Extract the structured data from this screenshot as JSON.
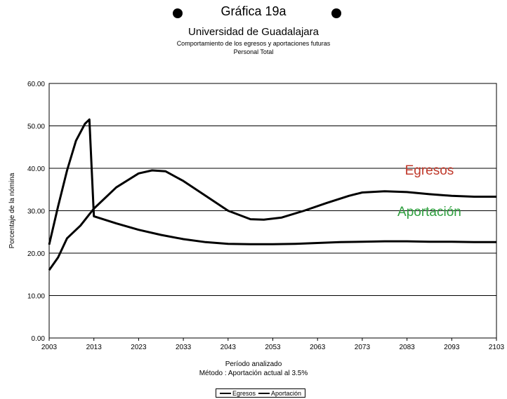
{
  "header": {
    "title": "Gráfica 19a",
    "subtitle": "Universidad de Guadalajara",
    "description": "Comportamiento de los egresos y aportaciones futuras",
    "population": "Personal Total"
  },
  "footer": {
    "xlabel": "Período analizado",
    "method": "Método : Aportación actual al 3.5%"
  },
  "chart_data": {
    "type": "line",
    "ylabel": "Porcentaje de la nómina",
    "ylim": [
      0,
      60
    ],
    "xlim": [
      2003,
      2103
    ],
    "x_ticks": [
      "2003",
      "2013",
      "2023",
      "2033",
      "2043",
      "2053",
      "2063",
      "2073",
      "2083",
      "2093",
      "2103"
    ],
    "y_ticks": [
      "0.00",
      "10.00",
      "20.00",
      "30.00",
      "40.00",
      "50.00",
      "60.00"
    ],
    "grid": true,
    "legend_position": "bottom",
    "series": [
      {
        "name": "Egresos",
        "color": "#000000",
        "label_color": "#c0392b",
        "points": [
          [
            2003,
            22.0
          ],
          [
            2005,
            31.0
          ],
          [
            2007,
            39.5
          ],
          [
            2009,
            46.5
          ],
          [
            2011,
            50.5
          ],
          [
            2012,
            51.5
          ],
          [
            2013,
            28.7
          ],
          [
            2018,
            27.0
          ],
          [
            2023,
            25.5
          ],
          [
            2028,
            24.3
          ],
          [
            2033,
            23.3
          ],
          [
            2038,
            22.6
          ],
          [
            2043,
            22.2
          ],
          [
            2048,
            22.1
          ],
          [
            2053,
            22.1
          ],
          [
            2058,
            22.2
          ],
          [
            2063,
            22.4
          ],
          [
            2068,
            22.6
          ],
          [
            2073,
            22.7
          ],
          [
            2078,
            22.8
          ],
          [
            2083,
            22.8
          ],
          [
            2088,
            22.7
          ],
          [
            2093,
            22.7
          ],
          [
            2098,
            22.6
          ],
          [
            2103,
            22.6
          ]
        ]
      },
      {
        "name": "Aportación",
        "color": "#000000",
        "label_color": "#2e9e3e",
        "points": [
          [
            2003,
            16.0
          ],
          [
            2005,
            19.0
          ],
          [
            2007,
            23.5
          ],
          [
            2010,
            26.5
          ],
          [
            2013,
            30.5
          ],
          [
            2018,
            35.5
          ],
          [
            2023,
            38.8
          ],
          [
            2026,
            39.5
          ],
          [
            2029,
            39.3
          ],
          [
            2033,
            37.0
          ],
          [
            2038,
            33.5
          ],
          [
            2043,
            30.0
          ],
          [
            2048,
            28.0
          ],
          [
            2051,
            27.9
          ],
          [
            2055,
            28.4
          ],
          [
            2060,
            30.0
          ],
          [
            2065,
            31.8
          ],
          [
            2070,
            33.5
          ],
          [
            2073,
            34.3
          ],
          [
            2078,
            34.6
          ],
          [
            2083,
            34.4
          ],
          [
            2088,
            33.9
          ],
          [
            2093,
            33.5
          ],
          [
            2098,
            33.3
          ],
          [
            2103,
            33.3
          ]
        ]
      }
    ],
    "annotations": [
      {
        "text": "Egresos",
        "x": 2088,
        "y": 38.5,
        "color": "#c0392b"
      },
      {
        "text": "Aportación",
        "x": 2088,
        "y": 28.8,
        "color": "#2e9e3e"
      }
    ]
  }
}
